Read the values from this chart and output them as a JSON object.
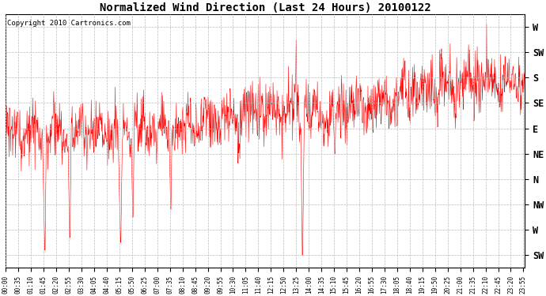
{
  "title": "Normalized Wind Direction (Last 24 Hours) 20100122",
  "copyright_text": "Copyright 2010 Cartronics.com",
  "ytick_labels": [
    "SW",
    "W",
    "NW",
    "N",
    "NE",
    "E",
    "SE",
    "S",
    "SW",
    "W"
  ],
  "ytick_values": [
    -1,
    0,
    1,
    2,
    3,
    4,
    5,
    6,
    7,
    8
  ],
  "ymin": -1.5,
  "ymax": 8.5,
  "line_color": "#ff0000",
  "background_color": "#ffffff",
  "grid_color": "#bbbbbb",
  "title_fontsize": 10,
  "copyright_fontsize": 6.5,
  "xtick_fontsize": 5.5,
  "ytick_fontsize": 8.5,
  "seed": 1234,
  "n_points": 1440,
  "figwidth": 6.9,
  "figheight": 3.75,
  "dpi": 100
}
